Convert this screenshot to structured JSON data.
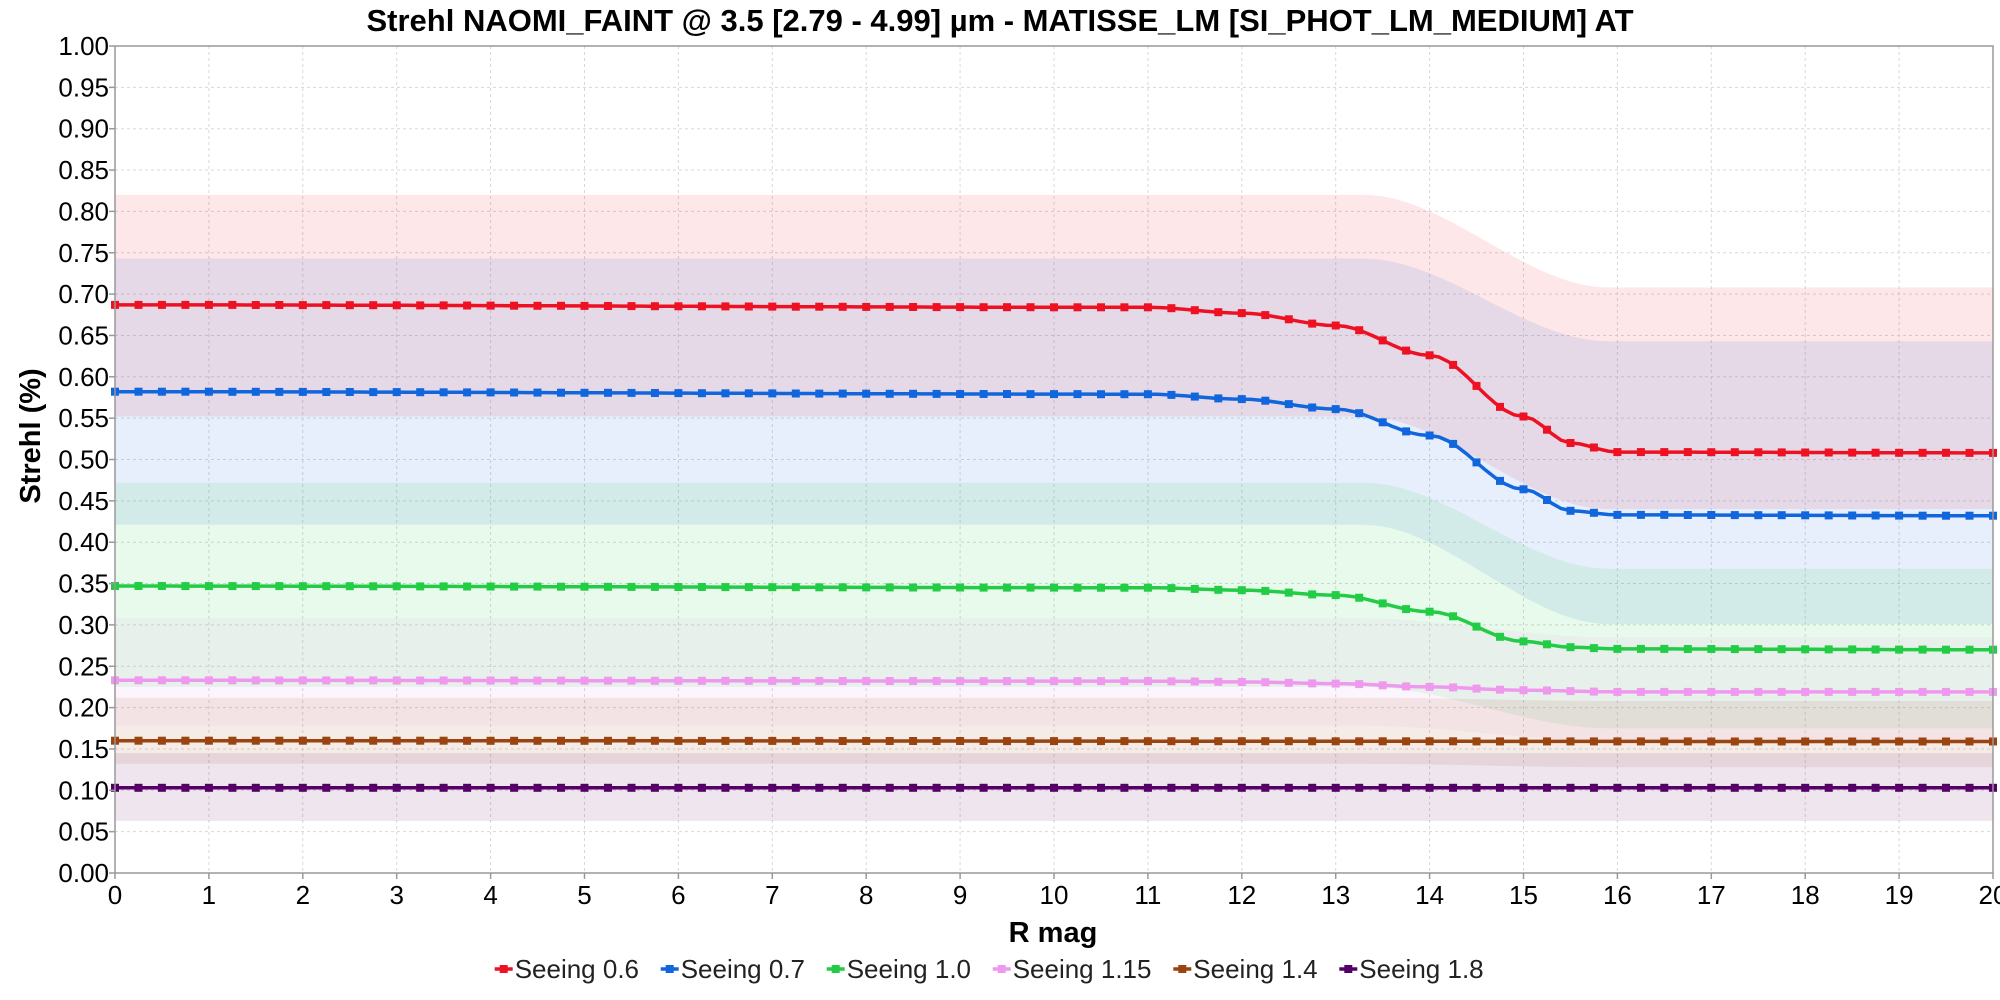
{
  "chart_data": {
    "type": "line",
    "title": "Strehl NAOMI_FAINT @ 3.5 [2.79 - 4.99] µm - MATISSE_LM [SI_PHOT_LM_MEDIUM] AT",
    "xlabel": "R mag",
    "ylabel": "Strehl (%)",
    "xlim": [
      0,
      20
    ],
    "ylim": [
      0,
      1
    ],
    "x_ticks": [
      "0",
      "1",
      "2",
      "3",
      "4",
      "5",
      "6",
      "7",
      "8",
      "9",
      "10",
      "11",
      "12",
      "13",
      "14",
      "15",
      "16",
      "17",
      "18",
      "19",
      "20"
    ],
    "y_ticks": [
      "0.00",
      "0.05",
      "0.10",
      "0.15",
      "0.20",
      "0.25",
      "0.30",
      "0.35",
      "0.40",
      "0.45",
      "0.50",
      "0.55",
      "0.60",
      "0.65",
      "0.70",
      "0.75",
      "0.80",
      "0.85",
      "0.90",
      "0.95",
      "1.00"
    ],
    "grid": true,
    "legend_position": "bottom-center",
    "series": [
      {
        "name": "Seeing 0.6",
        "color": "#ee1122",
        "faint_value": 0.508,
        "band_bright": [
          0.552,
          0.82
        ],
        "band_faint": [
          0.44,
          0.708
        ],
        "points": [
          [
            0,
            0.687
          ],
          [
            11,
            0.684
          ],
          [
            12,
            0.677
          ],
          [
            13,
            0.662
          ],
          [
            14,
            0.626
          ],
          [
            15,
            0.552
          ],
          [
            15.5,
            0.52
          ],
          [
            16,
            0.509
          ],
          [
            20,
            0.508
          ]
        ]
      },
      {
        "name": "Seeing 0.7",
        "color": "#1166dd",
        "faint_value": 0.432,
        "band_bright": [
          0.421,
          0.743
        ],
        "band_faint": [
          0.301,
          0.643
        ],
        "points": [
          [
            0,
            0.582
          ],
          [
            11,
            0.579
          ],
          [
            12,
            0.573
          ],
          [
            13,
            0.561
          ],
          [
            14,
            0.529
          ],
          [
            15,
            0.464
          ],
          [
            15.5,
            0.438
          ],
          [
            16,
            0.433
          ],
          [
            20,
            0.432
          ]
        ]
      },
      {
        "name": "Seeing 1.0",
        "color": "#22cc44",
        "faint_value": 0.27,
        "band_bright": [
          0.225,
          0.472
        ],
        "band_faint": [
          0.175,
          0.368
        ],
        "points": [
          [
            0,
            0.347
          ],
          [
            11,
            0.345
          ],
          [
            12,
            0.342
          ],
          [
            13,
            0.336
          ],
          [
            14,
            0.316
          ],
          [
            15,
            0.28
          ],
          [
            15.5,
            0.273
          ],
          [
            16,
            0.271
          ],
          [
            20,
            0.27
          ]
        ]
      },
      {
        "name": "Seeing 1.15",
        "color": "#ee99ee",
        "faint_value": 0.219,
        "band_bright": [
          0.178,
          0.308
        ],
        "band_faint": [
          0.16,
          0.285
        ],
        "points": [
          [
            0,
            0.233
          ],
          [
            11,
            0.232
          ],
          [
            12,
            0.231
          ],
          [
            13,
            0.229
          ],
          [
            14,
            0.225
          ],
          [
            15,
            0.221
          ],
          [
            16,
            0.219
          ],
          [
            20,
            0.219
          ]
        ]
      },
      {
        "name": "Seeing 1.4",
        "color": "#994411",
        "faint_value": 0.159,
        "band_bright": [
          0.132,
          0.212
        ],
        "band_faint": [
          0.128,
          0.208
        ],
        "points": [
          [
            0,
            0.16
          ],
          [
            20,
            0.159
          ]
        ]
      },
      {
        "name": "Seeing 1.8",
        "color": "#550066",
        "faint_value": 0.103,
        "band_bright": [
          0.063,
          0.145
        ],
        "band_faint": [
          0.063,
          0.145
        ],
        "points": [
          [
            0,
            0.103
          ],
          [
            20,
            0.103
          ]
        ]
      }
    ]
  }
}
